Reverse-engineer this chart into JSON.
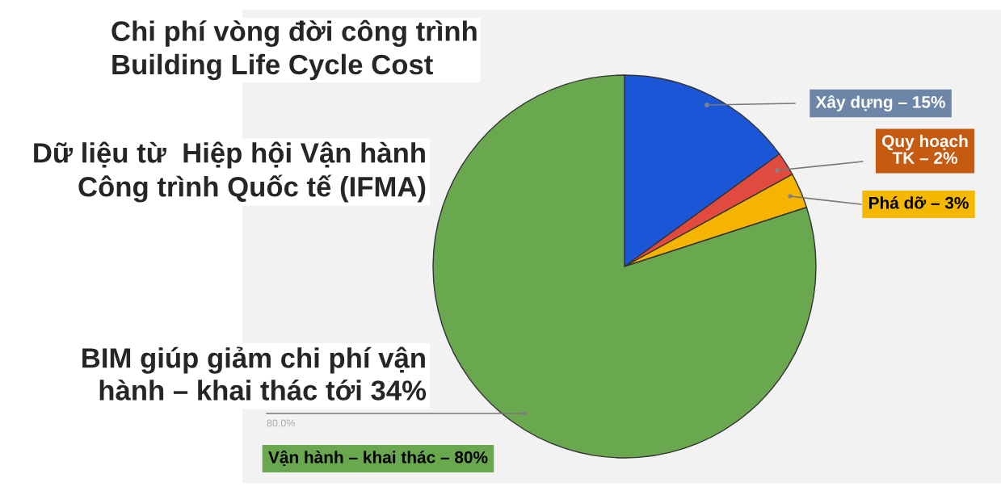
{
  "chart_data": {
    "type": "pie",
    "title": "Chi phí vòng đời công trình\nBuilding Life Cycle Cost",
    "categories": [
      "Xây dựng – 15%",
      "Quy hoạch\nTK – 2%",
      "Phá dỡ – 3%",
      "Vận hành – khai thác – 80%"
    ],
    "values": [
      15,
      2,
      3,
      80
    ],
    "colors": [
      "#1a56d6",
      "#e04a3f",
      "#f4b400",
      "#6aa84f"
    ],
    "value_labels": [
      null,
      null,
      null,
      "80.0%"
    ],
    "annotations": [
      "Dữ liệu từ  Hiệp hội Vận hành\nCông trình Quốc tế (IFMA)",
      "BIM giúp giảm chi phí vận\nhành – khai thác tới 34%"
    ]
  }
}
